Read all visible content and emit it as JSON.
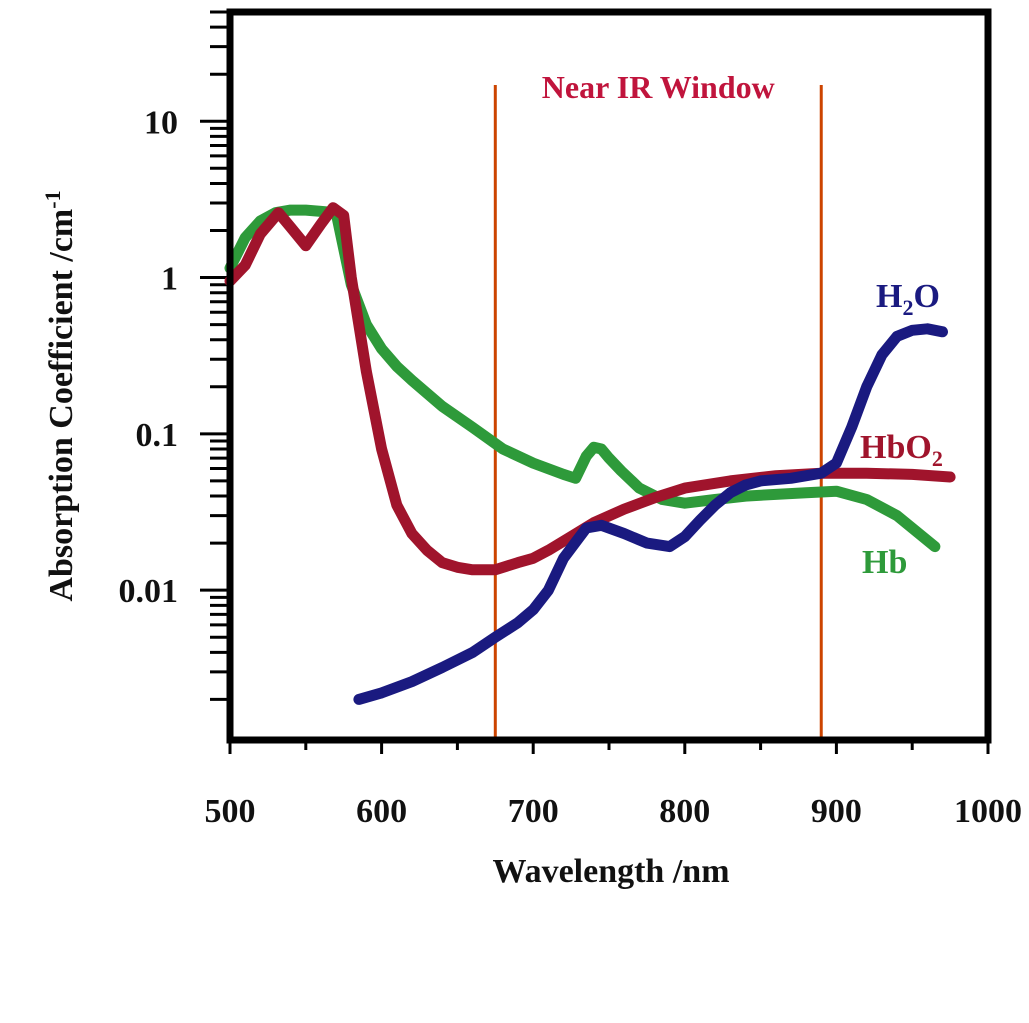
{
  "chart_data": {
    "type": "line",
    "xlabel": "Wavelength /nm",
    "ylabel": "Absorption Coefficient /cm",
    "ylabel_superscript": "-1",
    "xscale": "linear",
    "yscale": "log",
    "xlim": [
      500,
      1000
    ],
    "ylim": [
      0.0011,
      50
    ],
    "x_ticks": [
      500,
      600,
      700,
      800,
      900,
      1000
    ],
    "y_ticks": [
      {
        "value": 0.01,
        "label": "0.01"
      },
      {
        "value": 0.1,
        "label": "0.1"
      },
      {
        "value": 1,
        "label": "1"
      },
      {
        "value": 10,
        "label": "10"
      }
    ],
    "grid": false,
    "region": {
      "label": "Near IR Window",
      "x": [
        675,
        890
      ],
      "color": "#cc4400",
      "label_color": "#c0143c"
    },
    "series": [
      {
        "name": "Hb",
        "color": "#2e9a3a",
        "label_color": "#2e9a3a",
        "x": [
          500,
          510,
          520,
          530,
          540,
          550,
          560,
          570,
          580,
          590,
          600,
          610,
          620,
          640,
          660,
          680,
          700,
          720,
          728,
          735,
          740,
          745,
          750,
          758,
          770,
          785,
          800,
          820,
          840,
          860,
          880,
          900,
          920,
          940,
          965
        ],
        "y": [
          1.15,
          1.8,
          2.3,
          2.6,
          2.7,
          2.7,
          2.65,
          2.6,
          0.9,
          0.5,
          0.35,
          0.27,
          0.22,
          0.15,
          0.11,
          0.08,
          0.065,
          0.055,
          0.052,
          0.072,
          0.082,
          0.08,
          0.07,
          0.058,
          0.045,
          0.038,
          0.036,
          0.038,
          0.04,
          0.041,
          0.042,
          0.043,
          0.038,
          0.03,
          0.019
        ]
      },
      {
        "name": "HbO",
        "name_subscript": "2",
        "color": "#a0142c",
        "label_color": "#a0142c",
        "x": [
          500,
          510,
          520,
          532,
          540,
          550,
          560,
          568,
          575,
          580,
          590,
          600,
          610,
          620,
          630,
          640,
          650,
          660,
          675,
          690,
          700,
          710,
          725,
          740,
          760,
          780,
          800,
          830,
          860,
          890,
          920,
          950,
          975
        ],
        "y": [
          0.95,
          1.2,
          1.9,
          2.6,
          2.1,
          1.6,
          2.2,
          2.8,
          2.5,
          1.0,
          0.25,
          0.08,
          0.035,
          0.023,
          0.018,
          0.015,
          0.014,
          0.0135,
          0.0135,
          0.015,
          0.016,
          0.018,
          0.022,
          0.027,
          0.033,
          0.039,
          0.045,
          0.05,
          0.054,
          0.056,
          0.056,
          0.055,
          0.053
        ]
      },
      {
        "name": "H",
        "name_subscript": "2",
        "name_suffix": "O",
        "color": "#1a1a80",
        "label_color": "#1a1a80",
        "x": [
          585,
          600,
          620,
          640,
          660,
          675,
          690,
          700,
          710,
          720,
          735,
          745,
          760,
          775,
          790,
          800,
          810,
          820,
          830,
          840,
          850,
          870,
          890,
          900,
          910,
          920,
          930,
          940,
          950,
          960,
          970
        ],
        "y": [
          0.002,
          0.0022,
          0.0026,
          0.0032,
          0.004,
          0.005,
          0.0062,
          0.0075,
          0.01,
          0.016,
          0.025,
          0.026,
          0.023,
          0.02,
          0.019,
          0.022,
          0.028,
          0.035,
          0.042,
          0.047,
          0.05,
          0.052,
          0.056,
          0.065,
          0.11,
          0.2,
          0.32,
          0.42,
          0.46,
          0.47,
          0.45
        ]
      }
    ]
  }
}
